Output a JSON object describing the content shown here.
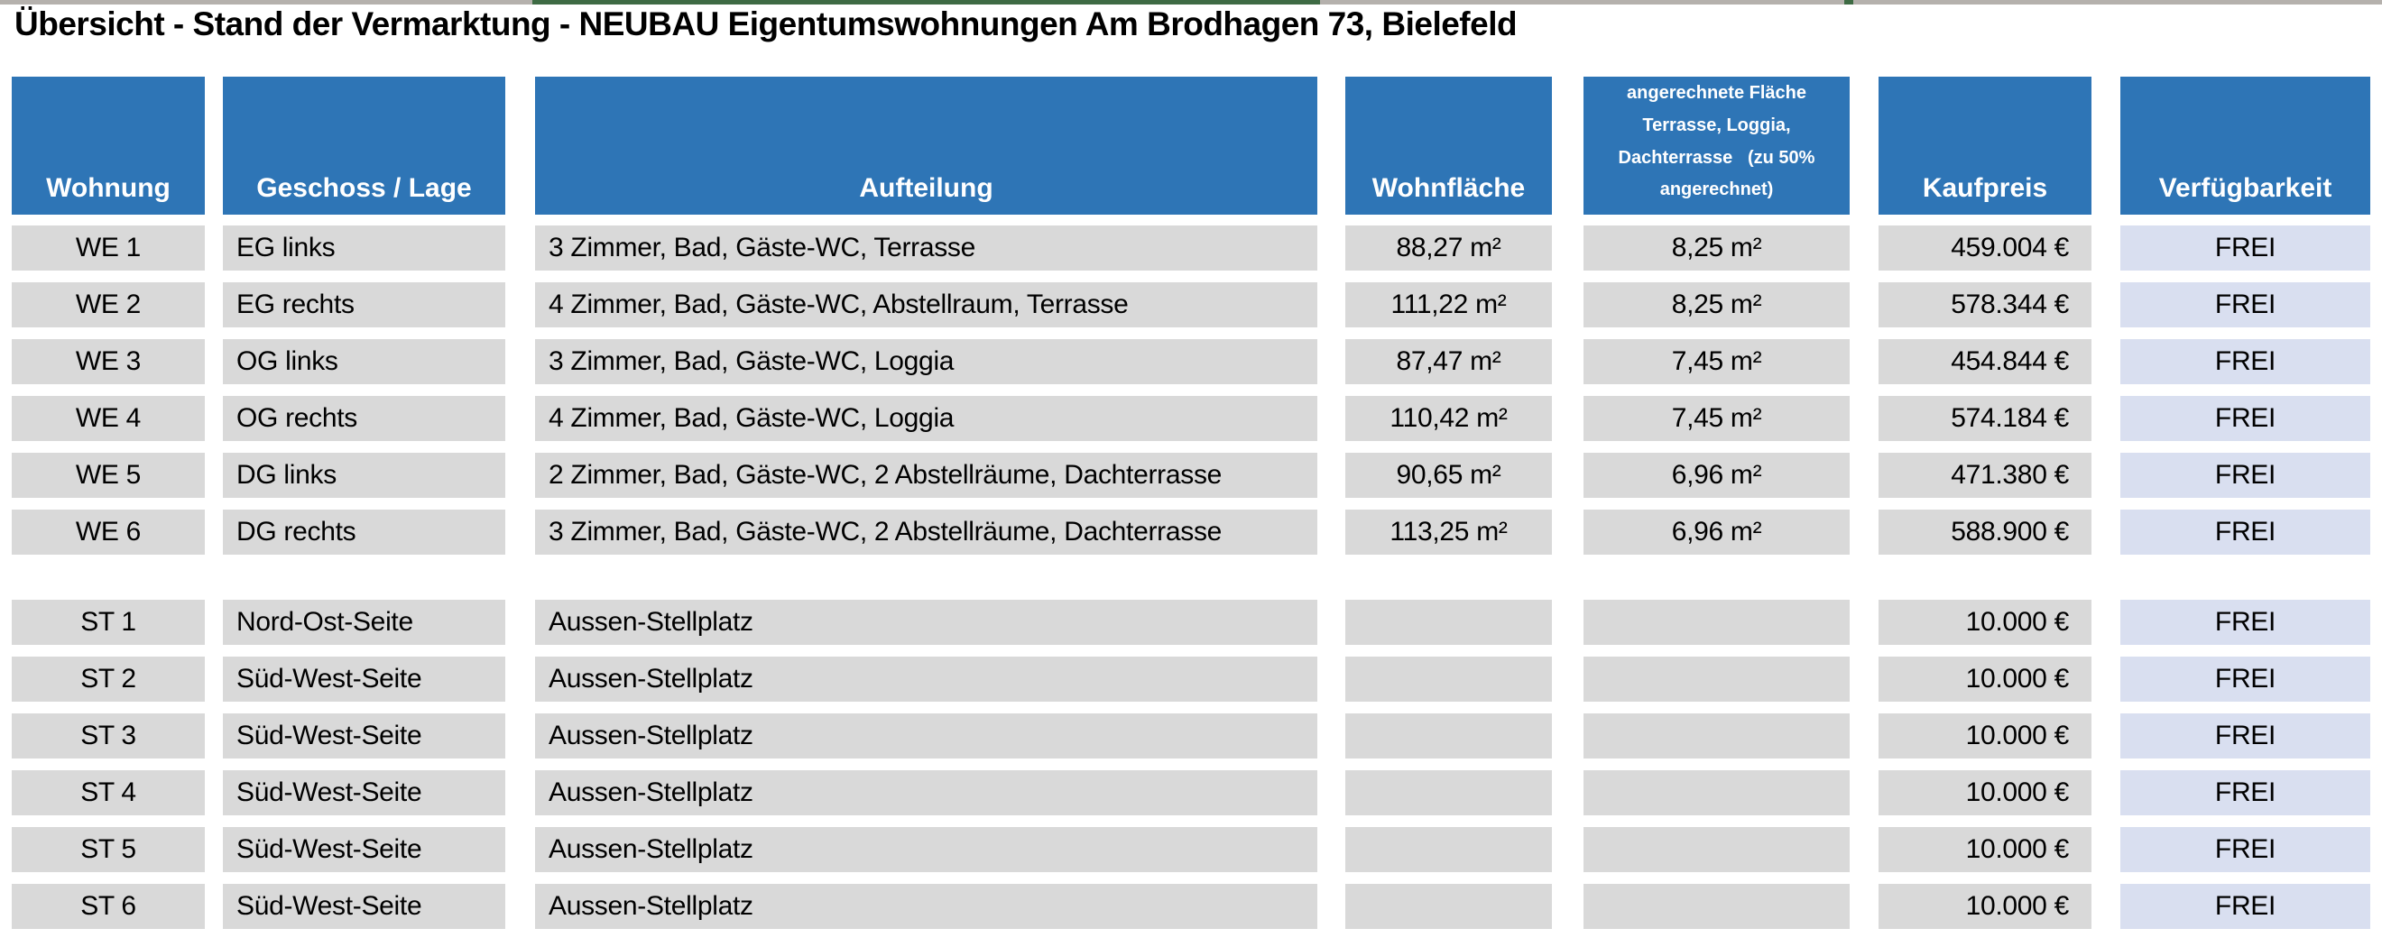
{
  "title": "Übersicht - Stand der Vermarktung - NEUBAU Eigentumswohnungen Am Brodhagen 73, Bielefeld",
  "colors": {
    "header_bg": "#2E75B6",
    "cell_bg": "#D9D9D9",
    "free_bg": "#D9DFF0",
    "topbar_gray": "#B5B1AD",
    "topbar_green": "#3E6B44"
  },
  "table": {
    "headers": [
      {
        "label": "Wohnung"
      },
      {
        "label": "Geschoss / Lage"
      },
      {
        "label": "Aufteilung"
      },
      {
        "label": "Wohnfläche"
      },
      {
        "label": "angerechnete Fläche Terrasse, Loggia, Dachterrasse (zu 50% angerechnet)",
        "lines": [
          "angerechnete Fläche",
          "Terrasse, Loggia,",
          "Dachterrasse   (zu 50%",
          "angerechnet)"
        ]
      },
      {
        "label": "Kaufpreis"
      },
      {
        "label": "Verfügbarkeit"
      }
    ],
    "rows": [
      {
        "wohnung": "WE 1",
        "geschoss_lage": "EG links",
        "aufteilung": "3 Zimmer, Bad, Gäste-WC, Terrasse",
        "wohnflaeche": "88,27 m²",
        "angerechnete_flaeche": "8,25 m²",
        "kaufpreis": "459.004 €",
        "verfuegbarkeit": "FREI"
      },
      {
        "wohnung": "WE 2",
        "geschoss_lage": "EG rechts",
        "aufteilung": "4 Zimmer, Bad, Gäste-WC, Abstellraum, Terrasse",
        "wohnflaeche": "111,22 m²",
        "angerechnete_flaeche": "8,25 m²",
        "kaufpreis": "578.344 €",
        "verfuegbarkeit": "FREI"
      },
      {
        "wohnung": "WE 3",
        "geschoss_lage": "OG links",
        "aufteilung": "3 Zimmer, Bad, Gäste-WC, Loggia",
        "wohnflaeche": "87,47 m²",
        "angerechnete_flaeche": "7,45 m²",
        "kaufpreis": "454.844 €",
        "verfuegbarkeit": "FREI"
      },
      {
        "wohnung": "WE 4",
        "geschoss_lage": "OG rechts",
        "aufteilung": "4 Zimmer, Bad, Gäste-WC, Loggia",
        "wohnflaeche": "110,42 m²",
        "angerechnete_flaeche": "7,45 m²",
        "kaufpreis": "574.184 €",
        "verfuegbarkeit": "FREI"
      },
      {
        "wohnung": "WE 5",
        "geschoss_lage": "DG links",
        "aufteilung": "2 Zimmer, Bad, Gäste-WC, 2 Abstellräume, Dachterrasse",
        "wohnflaeche": "90,65 m²",
        "angerechnete_flaeche": "6,96 m²",
        "kaufpreis": "471.380 €",
        "verfuegbarkeit": "FREI"
      },
      {
        "wohnung": "WE 6",
        "geschoss_lage": "DG rechts",
        "aufteilung": "3 Zimmer, Bad, Gäste-WC, 2 Abstellräume, Dachterrasse",
        "wohnflaeche": "113,25 m²",
        "angerechnete_flaeche": "6,96 m²",
        "kaufpreis": "588.900 €",
        "verfuegbarkeit": "FREI"
      },
      {
        "wohnung": "ST 1",
        "geschoss_lage": "Nord-Ost-Seite",
        "aufteilung": "Aussen-Stellplatz",
        "wohnflaeche": "",
        "angerechnete_flaeche": "",
        "kaufpreis": "10.000 €",
        "verfuegbarkeit": "FREI"
      },
      {
        "wohnung": "ST 2",
        "geschoss_lage": "Süd-West-Seite",
        "aufteilung": "Aussen-Stellplatz",
        "wohnflaeche": "",
        "angerechnete_flaeche": "",
        "kaufpreis": "10.000 €",
        "verfuegbarkeit": "FREI"
      },
      {
        "wohnung": "ST 3",
        "geschoss_lage": "Süd-West-Seite",
        "aufteilung": "Aussen-Stellplatz",
        "wohnflaeche": "",
        "angerechnete_flaeche": "",
        "kaufpreis": "10.000 €",
        "verfuegbarkeit": "FREI"
      },
      {
        "wohnung": "ST 4",
        "geschoss_lage": "Süd-West-Seite",
        "aufteilung": "Aussen-Stellplatz",
        "wohnflaeche": "",
        "angerechnete_flaeche": "",
        "kaufpreis": "10.000 €",
        "verfuegbarkeit": "FREI"
      },
      {
        "wohnung": "ST 5",
        "geschoss_lage": "Süd-West-Seite",
        "aufteilung": "Aussen-Stellplatz",
        "wohnflaeche": "",
        "angerechnete_flaeche": "",
        "kaufpreis": "10.000 €",
        "verfuegbarkeit": "FREI"
      },
      {
        "wohnung": "ST 6",
        "geschoss_lage": "Süd-West-Seite",
        "aufteilung": "Aussen-Stellplatz",
        "wohnflaeche": "",
        "angerechnete_flaeche": "",
        "kaufpreis": "10.000 €",
        "verfuegbarkeit": "FREI"
      }
    ]
  }
}
